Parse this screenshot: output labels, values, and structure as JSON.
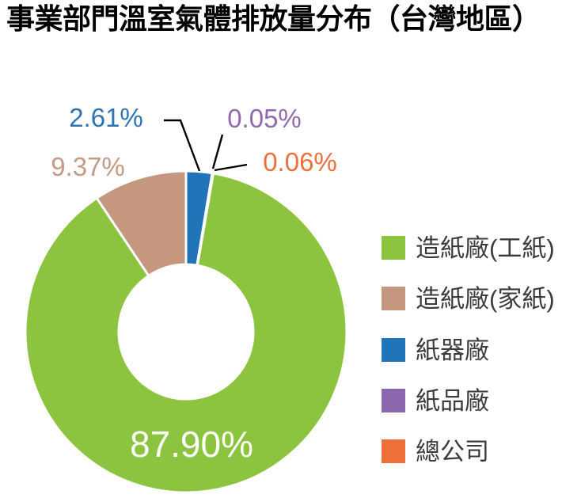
{
  "title": "事業部門溫室氣體排放量分布（台灣地區）",
  "chart_data": {
    "type": "pie",
    "subtype": "donut",
    "unit": "%",
    "title": "事業部門溫室氣體排放量分布（台灣地區）",
    "legend_position": "right",
    "segments": [
      {
        "label": "造紙廠(工紙)",
        "value": 87.9,
        "display": "87.90%",
        "color": "#8cc440"
      },
      {
        "label": "造紙廠(家紙)",
        "value": 9.37,
        "display": "9.37%",
        "color": "#c6977f"
      },
      {
        "label": "紙器廠",
        "value": 2.61,
        "display": "2.61%",
        "color": "#2174b8"
      },
      {
        "label": "紙品廠",
        "value": 0.05,
        "display": "0.05%",
        "color": "#8b67ad"
      },
      {
        "label": "總公司",
        "value": 0.06,
        "display": "0.06%",
        "color": "#ec7038"
      }
    ],
    "clockwise_order_from_top": [
      2,
      3,
      4,
      0,
      1
    ],
    "label_text_colors": {
      "green": "#8cc440",
      "tan": "#c49a84",
      "blue": "#2e74b5",
      "purple": "#9069ae",
      "orange": "#ed703b",
      "center": "#ffffff"
    }
  }
}
